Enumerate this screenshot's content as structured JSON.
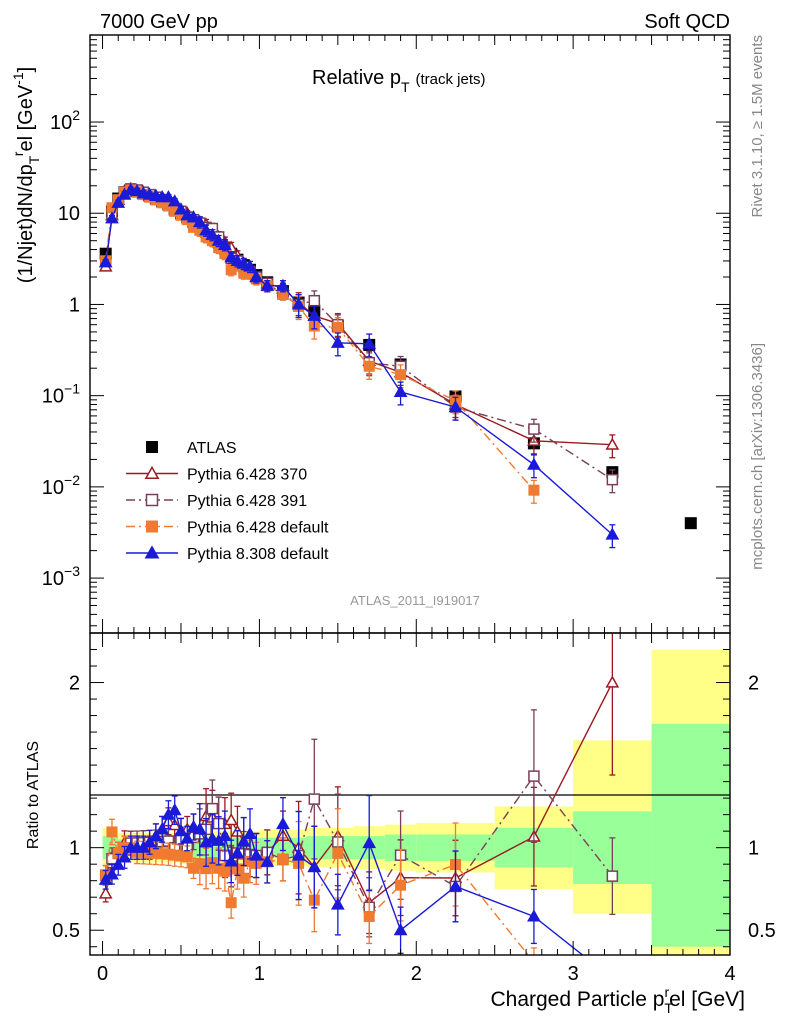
{
  "header": {
    "left": "7000 GeV pp",
    "right": "Soft QCD"
  },
  "side_labels": {
    "rivet": "Rivet 3.1.10, ≥ 1.5M events",
    "mcplots": "mcplots.cern.ch [arXiv:1306.3436]"
  },
  "chart_data": [
    {
      "panel": "main",
      "type": "scatter",
      "title": "Relative p_T (track jets)",
      "title_main": "Relative p",
      "title_sub": "T",
      "title_suffix": "(track jets)",
      "ylabel": "(1/Njet)dN/dp_T^rel [GeV^-1]",
      "xlabel": "",
      "yscale": "log",
      "ylim": [
        0.00025,
        900
      ],
      "xlim": [
        -0.08,
        4.0
      ],
      "ytick_labels": [
        {
          "value": 0.001,
          "base": "10",
          "exp": "−3"
        },
        {
          "value": 0.01,
          "base": "10",
          "exp": "−2"
        },
        {
          "value": 0.1,
          "base": "10",
          "exp": "−1"
        },
        {
          "value": 1,
          "base": "1",
          "exp": ""
        },
        {
          "value": 10,
          "base": "10",
          "exp": ""
        },
        {
          "value": 100,
          "base": "10",
          "exp": "2"
        }
      ],
      "watermark": "ATLAS_2011_I919017",
      "legend_position": "lower-left",
      "series": [
        {
          "name": "ATLAS",
          "color": "#000000",
          "marker": "square-filled",
          "line": "none",
          "x": [
            0.02,
            0.06,
            0.1,
            0.14,
            0.18,
            0.22,
            0.26,
            0.3,
            0.34,
            0.38,
            0.42,
            0.46,
            0.5,
            0.54,
            0.58,
            0.62,
            0.66,
            0.7,
            0.74,
            0.78,
            0.82,
            0.86,
            0.9,
            0.94,
            0.98,
            1.05,
            1.15,
            1.25,
            1.35,
            1.5,
            1.7,
            1.9,
            2.25,
            2.75,
            3.25,
            3.75
          ],
          "y": [
            3.6,
            10.5,
            14.5,
            17,
            18,
            17.5,
            16.5,
            15.5,
            14.5,
            13.5,
            12.5,
            11,
            10,
            9,
            8,
            7.2,
            6.3,
            5.5,
            4.8,
            4.2,
            3.6,
            3.1,
            2.7,
            2.4,
            2.1,
            1.75,
            1.4,
            1.05,
            0.85,
            0.58,
            0.36,
            0.22,
            0.098,
            0.03,
            0.0145,
            0.004
          ]
        },
        {
          "name": "Pythia 6.428 370",
          "color": "#9b1b20",
          "marker": "triangle-open",
          "line": "solid",
          "x": [
            0.02,
            0.06,
            0.1,
            0.14,
            0.18,
            0.22,
            0.26,
            0.3,
            0.34,
            0.38,
            0.42,
            0.46,
            0.5,
            0.54,
            0.58,
            0.62,
            0.66,
            0.7,
            0.74,
            0.78,
            0.82,
            0.86,
            0.9,
            0.94,
            0.98,
            1.05,
            1.15,
            1.25,
            1.35,
            1.5,
            1.7,
            1.9,
            2.25,
            2.75,
            3.25
          ],
          "y": [
            2.6,
            9.5,
            14,
            17.5,
            18.5,
            17.5,
            17,
            15.5,
            15.5,
            15,
            14.5,
            12.5,
            11,
            10,
            9,
            8,
            7.5,
            6.5,
            5.5,
            4.8,
            4.2,
            3.4,
            2.8,
            2.3,
            2.0,
            1.7,
            1.5,
            1.05,
            0.75,
            0.62,
            0.24,
            0.18,
            0.08,
            0.032,
            0.029
          ]
        },
        {
          "name": "Pythia 6.428 391",
          "color": "#7a3f5a",
          "marker": "square-open",
          "line": "dashdot",
          "x": [
            0.02,
            0.06,
            0.1,
            0.14,
            0.18,
            0.22,
            0.26,
            0.3,
            0.34,
            0.38,
            0.42,
            0.46,
            0.5,
            0.54,
            0.58,
            0.62,
            0.66,
            0.7,
            0.74,
            0.78,
            0.82,
            0.86,
            0.9,
            0.94,
            0.98,
            1.05,
            1.15,
            1.25,
            1.35,
            1.5,
            1.7,
            1.9,
            2.25,
            2.75,
            3.25
          ],
          "y": [
            3.0,
            9.8,
            14,
            17,
            18.5,
            18,
            17,
            16,
            15,
            14,
            13,
            11,
            10.5,
            9,
            8.5,
            7.8,
            7.0,
            6.8,
            5.5,
            4.0,
            3.2,
            3.0,
            2.6,
            2.3,
            2.0,
            1.7,
            1.3,
            1.0,
            1.1,
            0.6,
            0.23,
            0.21,
            0.075,
            0.043,
            0.012
          ]
        },
        {
          "name": "Pythia 6.428 default",
          "color": "#f07a30",
          "marker": "square-filled",
          "line": "dashdot",
          "x": [
            0.02,
            0.06,
            0.1,
            0.14,
            0.18,
            0.22,
            0.26,
            0.3,
            0.34,
            0.38,
            0.42,
            0.46,
            0.5,
            0.54,
            0.58,
            0.62,
            0.66,
            0.7,
            0.74,
            0.78,
            0.82,
            0.86,
            0.9,
            0.94,
            0.98,
            1.05,
            1.15,
            1.25,
            1.35,
            1.5,
            1.7,
            1.9,
            2.25,
            2.75
          ],
          "y": [
            3.0,
            11.5,
            14,
            17,
            18,
            17,
            16,
            15,
            14,
            13,
            12,
            10.5,
            9.5,
            8.5,
            7.0,
            6.5,
            5.5,
            5.0,
            4.2,
            3.6,
            2.4,
            2.7,
            2.2,
            2.2,
            1.9,
            1.6,
            1.3,
            0.95,
            0.58,
            0.56,
            0.21,
            0.17,
            0.088,
            0.0092
          ]
        },
        {
          "name": "Pythia 8.308 default",
          "color": "#1a1ad8",
          "marker": "triangle-filled",
          "line": "solid",
          "x": [
            0.02,
            0.06,
            0.1,
            0.14,
            0.18,
            0.22,
            0.26,
            0.3,
            0.34,
            0.38,
            0.42,
            0.46,
            0.5,
            0.54,
            0.58,
            0.62,
            0.66,
            0.7,
            0.74,
            0.78,
            0.82,
            0.86,
            0.9,
            0.94,
            0.98,
            1.05,
            1.15,
            1.25,
            1.35,
            1.5,
            1.7,
            1.9,
            2.25,
            2.75,
            3.25
          ],
          "y": [
            2.9,
            8.8,
            13,
            16,
            18,
            17.5,
            16.5,
            16,
            15.5,
            15,
            15,
            13.5,
            11,
            9.5,
            9.0,
            8.0,
            6.5,
            5.8,
            5.0,
            4.5,
            3.3,
            3.0,
            2.8,
            2.6,
            2.0,
            1.6,
            1.6,
            1.0,
            0.75,
            0.38,
            0.37,
            0.11,
            0.075,
            0.0175,
            0.003
          ]
        }
      ]
    },
    {
      "panel": "ratio",
      "type": "line",
      "ylabel": "Ratio to ATLAS",
      "xlabel": "Charged Particle p_T^rel [GeV]",
      "xlabel_main": "Charged Particle p",
      "xlabel_sub": "T",
      "xlabel_sup": "r",
      "xlabel_suffix": "el [GeV]",
      "ylim": [
        0.35,
        2.3
      ],
      "yticks": [
        0.5,
        1,
        2
      ],
      "ytick_labels": [
        "0.5",
        "1",
        "2"
      ],
      "xticks": [
        0,
        1,
        2,
        3,
        4
      ],
      "xtick_labels": [
        "0",
        "1",
        "2",
        "3",
        "4"
      ],
      "reference_line": 1,
      "uncertainty_bands": [
        {
          "x0": 0.0,
          "x1": 0.1,
          "green": [
            0.93,
            1.07
          ],
          "yellow": [
            0.88,
            1.12
          ]
        },
        {
          "x0": 0.1,
          "x1": 0.5,
          "green": [
            0.95,
            1.05
          ],
          "yellow": [
            0.91,
            1.09
          ]
        },
        {
          "x0": 0.5,
          "x1": 1.0,
          "green": [
            0.94,
            1.06
          ],
          "yellow": [
            0.9,
            1.1
          ]
        },
        {
          "x0": 1.0,
          "x1": 1.3,
          "green": [
            0.94,
            1.06
          ],
          "yellow": [
            0.89,
            1.11
          ]
        },
        {
          "x0": 1.3,
          "x1": 1.6,
          "green": [
            0.93,
            1.07
          ],
          "yellow": [
            0.88,
            1.12
          ]
        },
        {
          "x0": 1.6,
          "x1": 1.8,
          "green": [
            0.93,
            1.07
          ],
          "yellow": [
            0.87,
            1.13
          ]
        },
        {
          "x0": 1.8,
          "x1": 2.0,
          "green": [
            0.92,
            1.08
          ],
          "yellow": [
            0.86,
            1.14
          ]
        },
        {
          "x0": 2.0,
          "x1": 2.5,
          "green": [
            0.92,
            1.08
          ],
          "yellow": [
            0.85,
            1.15
          ]
        },
        {
          "x0": 2.5,
          "x1": 3.0,
          "green": [
            0.88,
            1.12
          ],
          "yellow": [
            0.75,
            1.25
          ]
        },
        {
          "x0": 3.0,
          "x1": 3.5,
          "green": [
            0.78,
            1.22
          ],
          "yellow": [
            0.6,
            1.65
          ]
        },
        {
          "x0": 3.5,
          "x1": 4.0,
          "green": [
            0.4,
            1.75
          ],
          "yellow": [
            0.35,
            2.2
          ]
        }
      ]
    }
  ]
}
